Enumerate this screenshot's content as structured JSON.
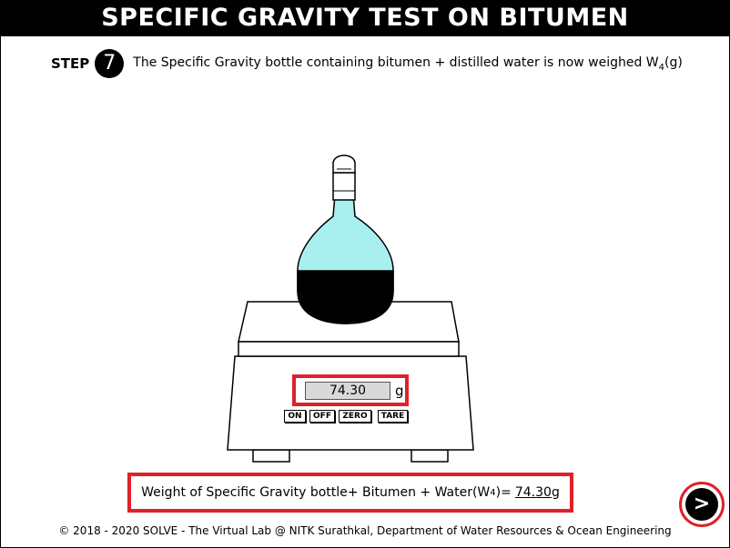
{
  "header": {
    "title": "SPECIFIC GRAVITY TEST ON BITUMEN"
  },
  "step": {
    "label": "STEP",
    "number": "7",
    "text": "The Specific Gravity bottle containing bitumen + distilled water is now weighed W",
    "subscript": "4",
    "suffix": "(g)"
  },
  "scale": {
    "reading": "74.30",
    "unit": "g",
    "buttons": {
      "on": "ON",
      "off": "OFF",
      "zero": "ZERO",
      "tare": "TARE"
    }
  },
  "result": {
    "prefix": "Weight of Specific Gravity bottle+ Bitumen + Water(W",
    "subscript": "4",
    "suffix": ")=",
    "value": "74.30",
    "unit": "g"
  },
  "navigation": {
    "next_icon": "next-arrow-icon",
    "next_glyph": ">"
  },
  "footer": {
    "text": "© 2018 - 2020 SOLVE - The Virtual Lab @ NITK Surathkal, Department of Water Resources & Ocean Engineering"
  },
  "colors": {
    "highlight": "#e0202a",
    "water": "#a8f0f0",
    "bitumen": "#000000",
    "header_bg": "#000000"
  }
}
